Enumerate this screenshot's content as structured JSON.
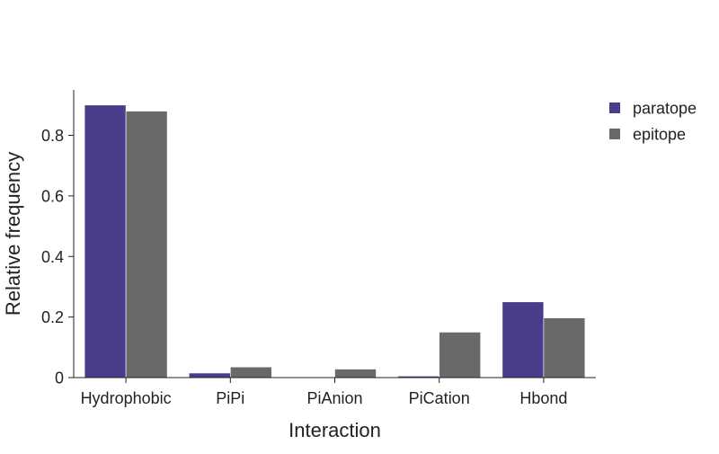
{
  "chart_data": {
    "type": "bar",
    "title": "",
    "xlabel": "Interaction",
    "ylabel": "Relative frequency",
    "categories": [
      "Hydrophobic",
      "PiPi",
      "PiAnion",
      "PiCation",
      "Hbond"
    ],
    "series": [
      {
        "name": "paratope",
        "color": "#483d8b",
        "values": [
          0.9,
          0.015,
          0.0,
          0.005,
          0.25
        ]
      },
      {
        "name": "epitope",
        "color": "#696969",
        "values": [
          0.88,
          0.035,
          0.028,
          0.15,
          0.197
        ]
      }
    ],
    "ylim": [
      0,
      0.95
    ],
    "yticks": [
      0,
      0.2,
      0.4,
      0.6,
      0.8
    ],
    "ytick_labels": [
      "0",
      "0.2",
      "0.4",
      "0.6",
      "0.8"
    ],
    "grid": false,
    "legend_position": "top-right-outside"
  }
}
